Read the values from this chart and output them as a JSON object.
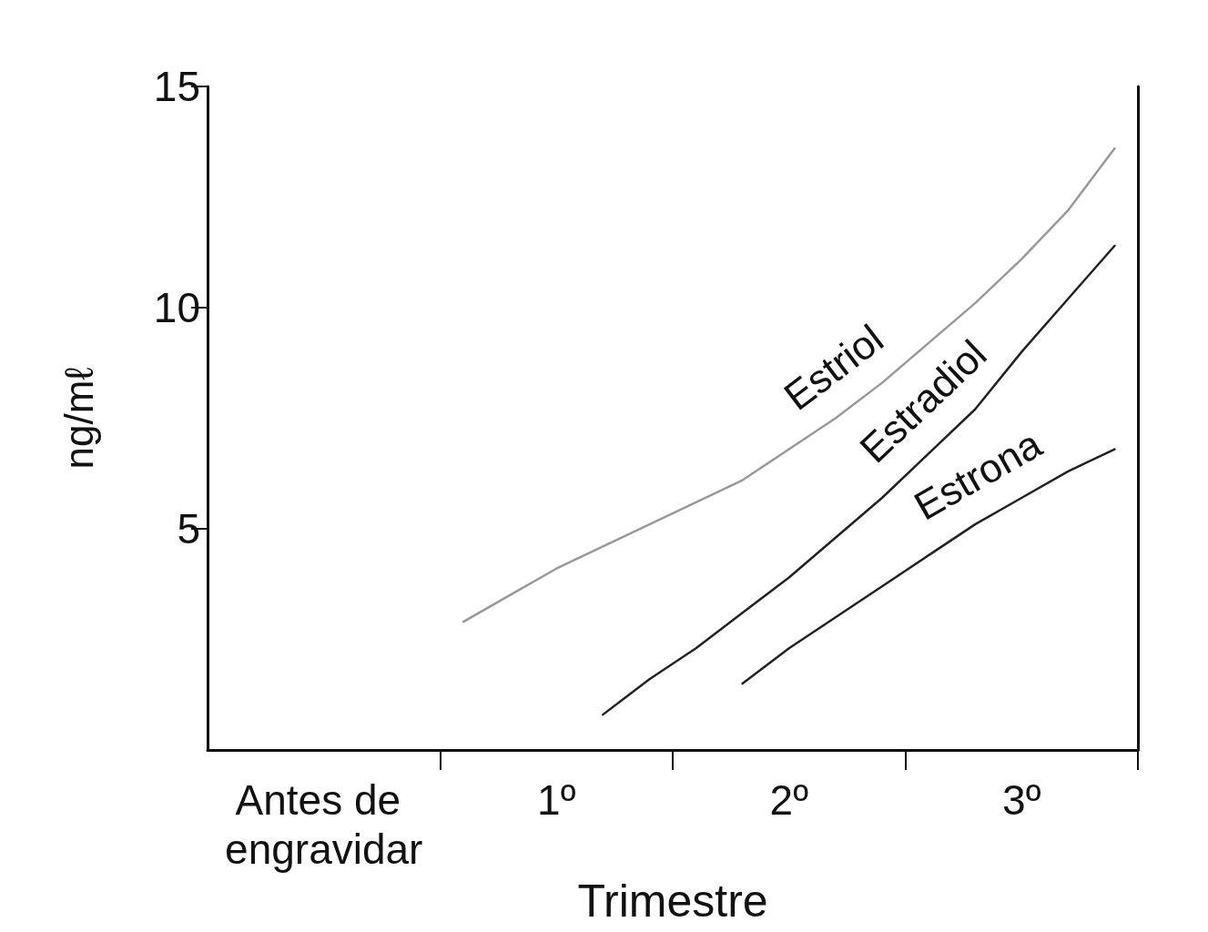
{
  "chart_data": {
    "type": "line",
    "xlabel": "Trimestre",
    "ylabel": "ng/mℓ",
    "categories": [
      null,
      null,
      "Antes de engravidar",
      null,
      null,
      null,
      null,
      "1º",
      null,
      null,
      null,
      null,
      "2º",
      null,
      null,
      null,
      null,
      "3º",
      null,
      null
    ],
    "ylim": [
      0,
      15
    ],
    "yticks": [
      5,
      10,
      15
    ],
    "grid": false,
    "legend": false,
    "marker": "none",
    "line_style": "solid",
    "series": [
      {
        "name": "Estriol",
        "color": "#999999",
        "values": [
          null,
          null,
          null,
          null,
          null,
          2.9,
          3.5,
          4.1,
          4.6,
          5.1,
          5.6,
          6.1,
          6.8,
          7.5,
          8.3,
          9.2,
          10.1,
          11.1,
          12.2,
          13.6
        ]
      },
      {
        "name": "Estradiol",
        "color": "#222222",
        "values": [
          null,
          null,
          null,
          null,
          null,
          null,
          null,
          null,
          0.8,
          1.6,
          2.3,
          3.1,
          3.9,
          4.8,
          5.7,
          6.7,
          7.7,
          9.0,
          10.2,
          11.4
        ]
      },
      {
        "name": "Estrona",
        "color": "#222222",
        "values": [
          null,
          null,
          null,
          null,
          null,
          null,
          null,
          null,
          null,
          null,
          null,
          1.5,
          2.3,
          3.0,
          3.7,
          4.4,
          5.1,
          5.7,
          6.3,
          6.8
        ]
      }
    ]
  }
}
